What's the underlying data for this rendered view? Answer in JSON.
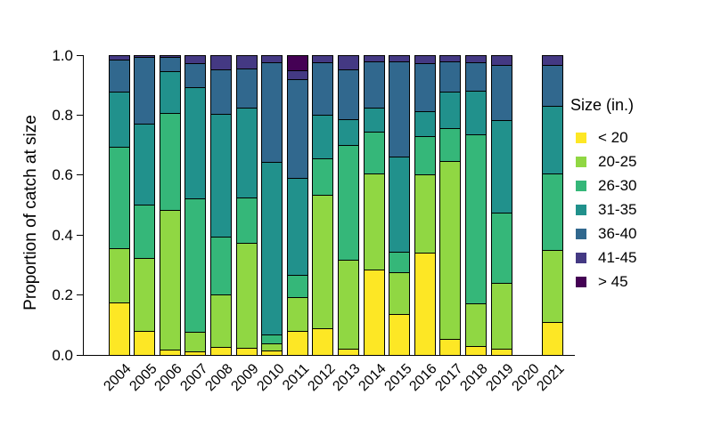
{
  "y_axis": {
    "label": "Proportion of catch at size",
    "ticks": [
      "0.0",
      "0.2",
      "0.4",
      "0.6",
      "0.8",
      "1.0"
    ]
  },
  "legend": {
    "title": "Size (in.)",
    "items": [
      {
        "label": "< 20",
        "color": "#FDE725"
      },
      {
        "label": "20-25",
        "color": "#90D743"
      },
      {
        "label": "26-30",
        "color": "#35B779"
      },
      {
        "label": "31-35",
        "color": "#21918C"
      },
      {
        "label": "36-40",
        "color": "#31688E"
      },
      {
        "label": "41-45",
        "color": "#443983"
      },
      {
        "label": "> 45",
        "color": "#440154"
      }
    ]
  },
  "chart_data": {
    "type": "bar",
    "stacked": true,
    "orientation": "vertical",
    "title": "",
    "xlabel": "",
    "ylabel": "Proportion of catch at size",
    "ylim": [
      0,
      1
    ],
    "grid": false,
    "legend_position": "right",
    "bar_outline_color": "#000000",
    "categories": [
      "2004",
      "2005",
      "2006",
      "2007",
      "2008",
      "2009",
      "2010",
      "2011",
      "2012",
      "2013",
      "2014",
      "2015",
      "2016",
      "2017",
      "2018",
      "2019",
      "2020",
      "2021"
    ],
    "series": [
      {
        "name": "< 20",
        "color": "#FDE725",
        "values": [
          0.173,
          0.078,
          0.015,
          0.01,
          0.025,
          0.022,
          0.012,
          0.076,
          0.085,
          0.017,
          0.282,
          0.134,
          0.338,
          0.051,
          0.027,
          0.017,
          0,
          0.106
        ]
      },
      {
        "name": "20-25",
        "color": "#90D743",
        "values": [
          0.18,
          0.242,
          0.467,
          0.065,
          0.175,
          0.351,
          0.023,
          0.114,
          0.448,
          0.298,
          0.323,
          0.14,
          0.262,
          0.594,
          0.143,
          0.222,
          0,
          0.242
        ]
      },
      {
        "name": "26-30",
        "color": "#35B779",
        "values": [
          0.341,
          0.181,
          0.324,
          0.446,
          0.193,
          0.15,
          0.029,
          0.074,
          0.122,
          0.384,
          0.138,
          0.069,
          0.129,
          0.111,
          0.564,
          0.235,
          0,
          0.255
        ]
      },
      {
        "name": "31-35",
        "color": "#21918C",
        "values": [
          0.183,
          0.27,
          0.141,
          0.373,
          0.41,
          0.3,
          0.578,
          0.326,
          0.145,
          0.087,
          0.08,
          0.319,
          0.084,
          0.123,
          0.148,
          0.309,
          0,
          0.228
        ]
      },
      {
        "name": "36-40",
        "color": "#31688E",
        "values": [
          0.108,
          0.224,
          0.048,
          0.079,
          0.15,
          0.132,
          0.333,
          0.33,
          0.176,
          0.166,
          0.155,
          0.316,
          0.161,
          0.099,
          0.094,
          0.183,
          0,
          0.135
        ]
      },
      {
        "name": "41-45",
        "color": "#443983",
        "values": [
          0.015,
          0.005,
          0.005,
          0.027,
          0.047,
          0.045,
          0.025,
          0.03,
          0.024,
          0.048,
          0.022,
          0.022,
          0.026,
          0.022,
          0.024,
          0.034,
          0,
          0.034
        ]
      },
      {
        "name": "> 45",
        "color": "#440154",
        "values": [
          0,
          0,
          0,
          0,
          0,
          0,
          0,
          0.05,
          0,
          0,
          0,
          0,
          0,
          0,
          0,
          0,
          0,
          0
        ]
      }
    ],
    "note_missing_years": [
      "2020"
    ]
  }
}
